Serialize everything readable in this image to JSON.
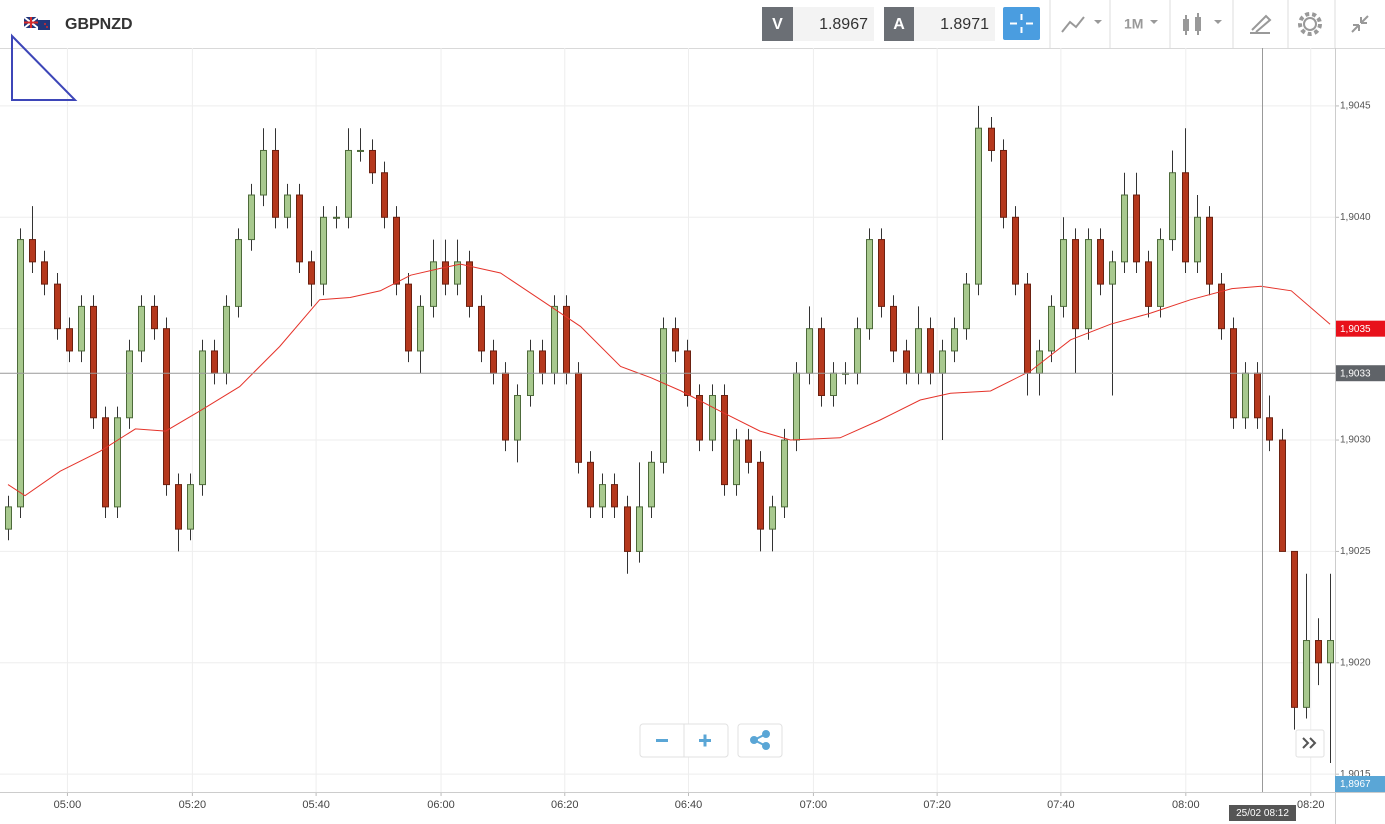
{
  "header": {
    "symbol": "GBPNZD",
    "sell_label": "V",
    "sell_price": "1.8967",
    "buy_label": "A",
    "buy_price": "1.8971",
    "timeframe": "1M"
  },
  "chart_data": {
    "type": "candlestick",
    "up_color": "#a8c98e",
    "down_color": "#b5381d",
    "xlim": [
      -0.66,
      109.4
    ],
    "xticks": [
      {
        "value": 4.9,
        "label": "05:00"
      },
      {
        "value": 15.2,
        "label": "05:20"
      },
      {
        "value": 25.4,
        "label": "05:40"
      },
      {
        "value": 35.7,
        "label": "06:00"
      },
      {
        "value": 45.9,
        "label": "06:20"
      },
      {
        "value": 56.1,
        "label": "06:40"
      },
      {
        "value": 66.4,
        "label": "07:00"
      },
      {
        "value": 76.6,
        "label": "07:20"
      },
      {
        "value": 86.8,
        "label": "07:40"
      },
      {
        "value": 97.1,
        "label": "08:00"
      },
      {
        "value": 107.4,
        "label": "08:20"
      }
    ],
    "ylim": [
      1.90142,
      1.90476
    ],
    "yticks": [
      {
        "value": 1.9015,
        "label": "1,9015"
      },
      {
        "value": 1.902,
        "label": "1,9020"
      },
      {
        "value": 1.9025,
        "label": "1,9025"
      },
      {
        "value": 1.903,
        "label": "1,9030"
      },
      {
        "value": 1.9035,
        "label": "1,9035"
      },
      {
        "value": 1.904,
        "label": "1,9040"
      },
      {
        "value": 1.9045,
        "label": "1,9045"
      }
    ],
    "grid": true,
    "candles": [
      [
        1.9026,
        1.90275,
        1.90255,
        1.9027
      ],
      [
        1.9027,
        1.90395,
        1.90265,
        1.9039
      ],
      [
        1.9039,
        1.90405,
        1.90375,
        1.9038
      ],
      [
        1.9038,
        1.90385,
        1.90365,
        1.9037
      ],
      [
        1.9037,
        1.90375,
        1.90345,
        1.9035
      ],
      [
        1.9035,
        1.90355,
        1.90335,
        1.9034
      ],
      [
        1.9034,
        1.90365,
        1.90335,
        1.9036
      ],
      [
        1.9036,
        1.90365,
        1.90305,
        1.9031
      ],
      [
        1.9031,
        1.90315,
        1.90265,
        1.9027
      ],
      [
        1.9027,
        1.90315,
        1.90265,
        1.9031
      ],
      [
        1.9031,
        1.90345,
        1.90305,
        1.9034
      ],
      [
        1.9034,
        1.90365,
        1.90335,
        1.9036
      ],
      [
        1.9036,
        1.90365,
        1.90345,
        1.9035
      ],
      [
        1.9035,
        1.90355,
        1.90275,
        1.9028
      ],
      [
        1.9028,
        1.90285,
        1.9025,
        1.9026
      ],
      [
        1.9026,
        1.90285,
        1.90255,
        1.9028
      ],
      [
        1.9028,
        1.90345,
        1.90275,
        1.9034
      ],
      [
        1.9034,
        1.90345,
        1.90325,
        1.9033
      ],
      [
        1.9033,
        1.90365,
        1.90325,
        1.9036
      ],
      [
        1.9036,
        1.90395,
        1.90355,
        1.9039
      ],
      [
        1.9039,
        1.90415,
        1.90385,
        1.9041
      ],
      [
        1.9041,
        1.9044,
        1.90405,
        1.9043
      ],
      [
        1.9043,
        1.9044,
        1.90395,
        1.904
      ],
      [
        1.904,
        1.90415,
        1.90395,
        1.9041
      ],
      [
        1.9041,
        1.90415,
        1.90375,
        1.9038
      ],
      [
        1.9038,
        1.90385,
        1.9036,
        1.9037
      ],
      [
        1.9037,
        1.90405,
        1.90365,
        1.904
      ],
      [
        1.904,
        1.90405,
        1.90395,
        1.904
      ],
      [
        1.904,
        1.9044,
        1.90395,
        1.9043
      ],
      [
        1.9043,
        1.9044,
        1.90425,
        1.9043
      ],
      [
        1.9043,
        1.90435,
        1.90415,
        1.9042
      ],
      [
        1.9042,
        1.90425,
        1.90395,
        1.904
      ],
      [
        1.904,
        1.90405,
        1.90365,
        1.9037
      ],
      [
        1.9037,
        1.90375,
        1.90335,
        1.9034
      ],
      [
        1.9034,
        1.90365,
        1.9033,
        1.9036
      ],
      [
        1.9036,
        1.9039,
        1.90355,
        1.9038
      ],
      [
        1.9038,
        1.9039,
        1.90365,
        1.9037
      ],
      [
        1.9037,
        1.9039,
        1.90365,
        1.9038
      ],
      [
        1.9038,
        1.90385,
        1.90355,
        1.9036
      ],
      [
        1.9036,
        1.90365,
        1.90335,
        1.9034
      ],
      [
        1.9034,
        1.90345,
        1.90325,
        1.9033
      ],
      [
        1.9033,
        1.90335,
        1.90295,
        1.903
      ],
      [
        1.903,
        1.90325,
        1.9029,
        1.9032
      ],
      [
        1.9032,
        1.90345,
        1.90315,
        1.9034
      ],
      [
        1.9034,
        1.90345,
        1.90325,
        1.9033
      ],
      [
        1.9033,
        1.90365,
        1.90325,
        1.9036
      ],
      [
        1.9036,
        1.90365,
        1.90325,
        1.9033
      ],
      [
        1.9033,
        1.90335,
        1.90285,
        1.9029
      ],
      [
        1.9029,
        1.90295,
        1.90265,
        1.9027
      ],
      [
        1.9027,
        1.90285,
        1.90265,
        1.9028
      ],
      [
        1.9028,
        1.90285,
        1.90265,
        1.9027
      ],
      [
        1.9027,
        1.90275,
        1.9024,
        1.9025
      ],
      [
        1.9025,
        1.9029,
        1.90245,
        1.9027
      ],
      [
        1.9027,
        1.90295,
        1.90265,
        1.9029
      ],
      [
        1.9029,
        1.90355,
        1.90285,
        1.9035
      ],
      [
        1.9035,
        1.90355,
        1.90335,
        1.9034
      ],
      [
        1.9034,
        1.90345,
        1.90315,
        1.9032
      ],
      [
        1.9032,
        1.90325,
        1.90295,
        1.903
      ],
      [
        1.903,
        1.90325,
        1.90295,
        1.9032
      ],
      [
        1.9032,
        1.90325,
        1.90275,
        1.9028
      ],
      [
        1.9028,
        1.90305,
        1.90275,
        1.903
      ],
      [
        1.903,
        1.90305,
        1.90285,
        1.9029
      ],
      [
        1.9029,
        1.90295,
        1.9025,
        1.9026
      ],
      [
        1.9026,
        1.90275,
        1.9025,
        1.9027
      ],
      [
        1.9027,
        1.90305,
        1.90265,
        1.903
      ],
      [
        1.903,
        1.90335,
        1.90295,
        1.9033
      ],
      [
        1.9033,
        1.9036,
        1.90325,
        1.9035
      ],
      [
        1.9035,
        1.90355,
        1.90315,
        1.9032
      ],
      [
        1.9032,
        1.90335,
        1.90315,
        1.9033
      ],
      [
        1.9033,
        1.90335,
        1.90325,
        1.9033
      ],
      [
        1.9033,
        1.90355,
        1.90325,
        1.9035
      ],
      [
        1.9035,
        1.90395,
        1.90345,
        1.9039
      ],
      [
        1.9039,
        1.90395,
        1.90355,
        1.9036
      ],
      [
        1.9036,
        1.90365,
        1.90335,
        1.9034
      ],
      [
        1.9034,
        1.90345,
        1.90325,
        1.9033
      ],
      [
        1.9033,
        1.9036,
        1.90325,
        1.9035
      ],
      [
        1.9035,
        1.90355,
        1.90325,
        1.9033
      ],
      [
        1.9033,
        1.90345,
        1.903,
        1.9034
      ],
      [
        1.9034,
        1.90355,
        1.90335,
        1.9035
      ],
      [
        1.9035,
        1.90375,
        1.90345,
        1.9037
      ],
      [
        1.9037,
        1.9045,
        1.90365,
        1.9044
      ],
      [
        1.9044,
        1.90445,
        1.90425,
        1.9043
      ],
      [
        1.9043,
        1.90435,
        1.90395,
        1.904
      ],
      [
        1.904,
        1.90405,
        1.90365,
        1.9037
      ],
      [
        1.9037,
        1.90375,
        1.9032,
        1.9033
      ],
      [
        1.9033,
        1.90345,
        1.9032,
        1.9034
      ],
      [
        1.9034,
        1.90365,
        1.90335,
        1.9036
      ],
      [
        1.9036,
        1.904,
        1.90355,
        1.9039
      ],
      [
        1.9039,
        1.90395,
        1.9033,
        1.9035
      ],
      [
        1.9035,
        1.90395,
        1.90345,
        1.9039
      ],
      [
        1.9039,
        1.90395,
        1.90365,
        1.9037
      ],
      [
        1.9037,
        1.90385,
        1.9032,
        1.9038
      ],
      [
        1.9038,
        1.9042,
        1.90375,
        1.9041
      ],
      [
        1.9041,
        1.9042,
        1.90375,
        1.9038
      ],
      [
        1.9038,
        1.90385,
        1.90355,
        1.9036
      ],
      [
        1.9036,
        1.90395,
        1.90355,
        1.9039
      ],
      [
        1.9039,
        1.9043,
        1.90385,
        1.9042
      ],
      [
        1.9042,
        1.9044,
        1.90375,
        1.9038
      ],
      [
        1.9038,
        1.9041,
        1.90375,
        1.904
      ],
      [
        1.904,
        1.90405,
        1.90365,
        1.9037
      ],
      [
        1.9037,
        1.90375,
        1.90345,
        1.9035
      ],
      [
        1.9035,
        1.90355,
        1.90305,
        1.9031
      ],
      [
        1.9031,
        1.90335,
        1.90305,
        1.9033
      ],
      [
        1.9033,
        1.90335,
        1.90305,
        1.9031
      ],
      [
        1.9031,
        1.9032,
        1.90295,
        1.903
      ],
      [
        1.903,
        1.90305,
        1.9025,
        1.9025
      ],
      [
        1.9025,
        1.9025,
        1.9017,
        1.9018
      ],
      [
        1.9018,
        1.9024,
        1.90175,
        1.9021
      ],
      [
        1.9021,
        1.9022,
        1.9019,
        1.902
      ],
      [
        1.902,
        1.9024,
        1.90155,
        1.9021
      ]
    ],
    "ma": {
      "color": "#e5332a",
      "x": [
        0,
        1.4,
        4.3,
        7.6,
        10.5,
        13,
        15.8,
        19.1,
        22.4,
        25.7,
        28.2,
        30.7,
        33.2,
        35.6,
        37.3,
        40.6,
        43.9,
        47.2,
        50.5,
        53,
        55.5,
        58.7,
        62,
        64.5,
        68.6,
        71.9,
        75.2,
        77.7,
        81,
        84.3,
        87.6,
        90.9,
        94.2,
        97.5,
        100.9,
        103.3,
        105.8,
        109
      ],
      "values": [
        1.9028,
        1.90275,
        1.90286,
        1.90295,
        1.90305,
        1.90304,
        1.90313,
        1.90324,
        1.90342,
        1.90363,
        1.90364,
        1.90367,
        1.90374,
        1.90377,
        1.90379,
        1.90375,
        1.90363,
        1.90351,
        1.90333,
        1.90328,
        1.90322,
        1.90313,
        1.90304,
        1.903,
        1.90301,
        1.90309,
        1.90318,
        1.90321,
        1.90322,
        1.90331,
        1.90345,
        1.90352,
        1.90357,
        1.90363,
        1.90368,
        1.90369,
        1.90367,
        1.90352
      ]
    },
    "price_tags": [
      {
        "value": 1.9035,
        "label": "1,9035",
        "color": "#e8111b"
      },
      {
        "value": 1.9033,
        "label": "1,9033",
        "color": "#5f6368"
      }
    ],
    "crosshair_time": "25/02 08:12",
    "bottom_tag": "1,8967"
  }
}
